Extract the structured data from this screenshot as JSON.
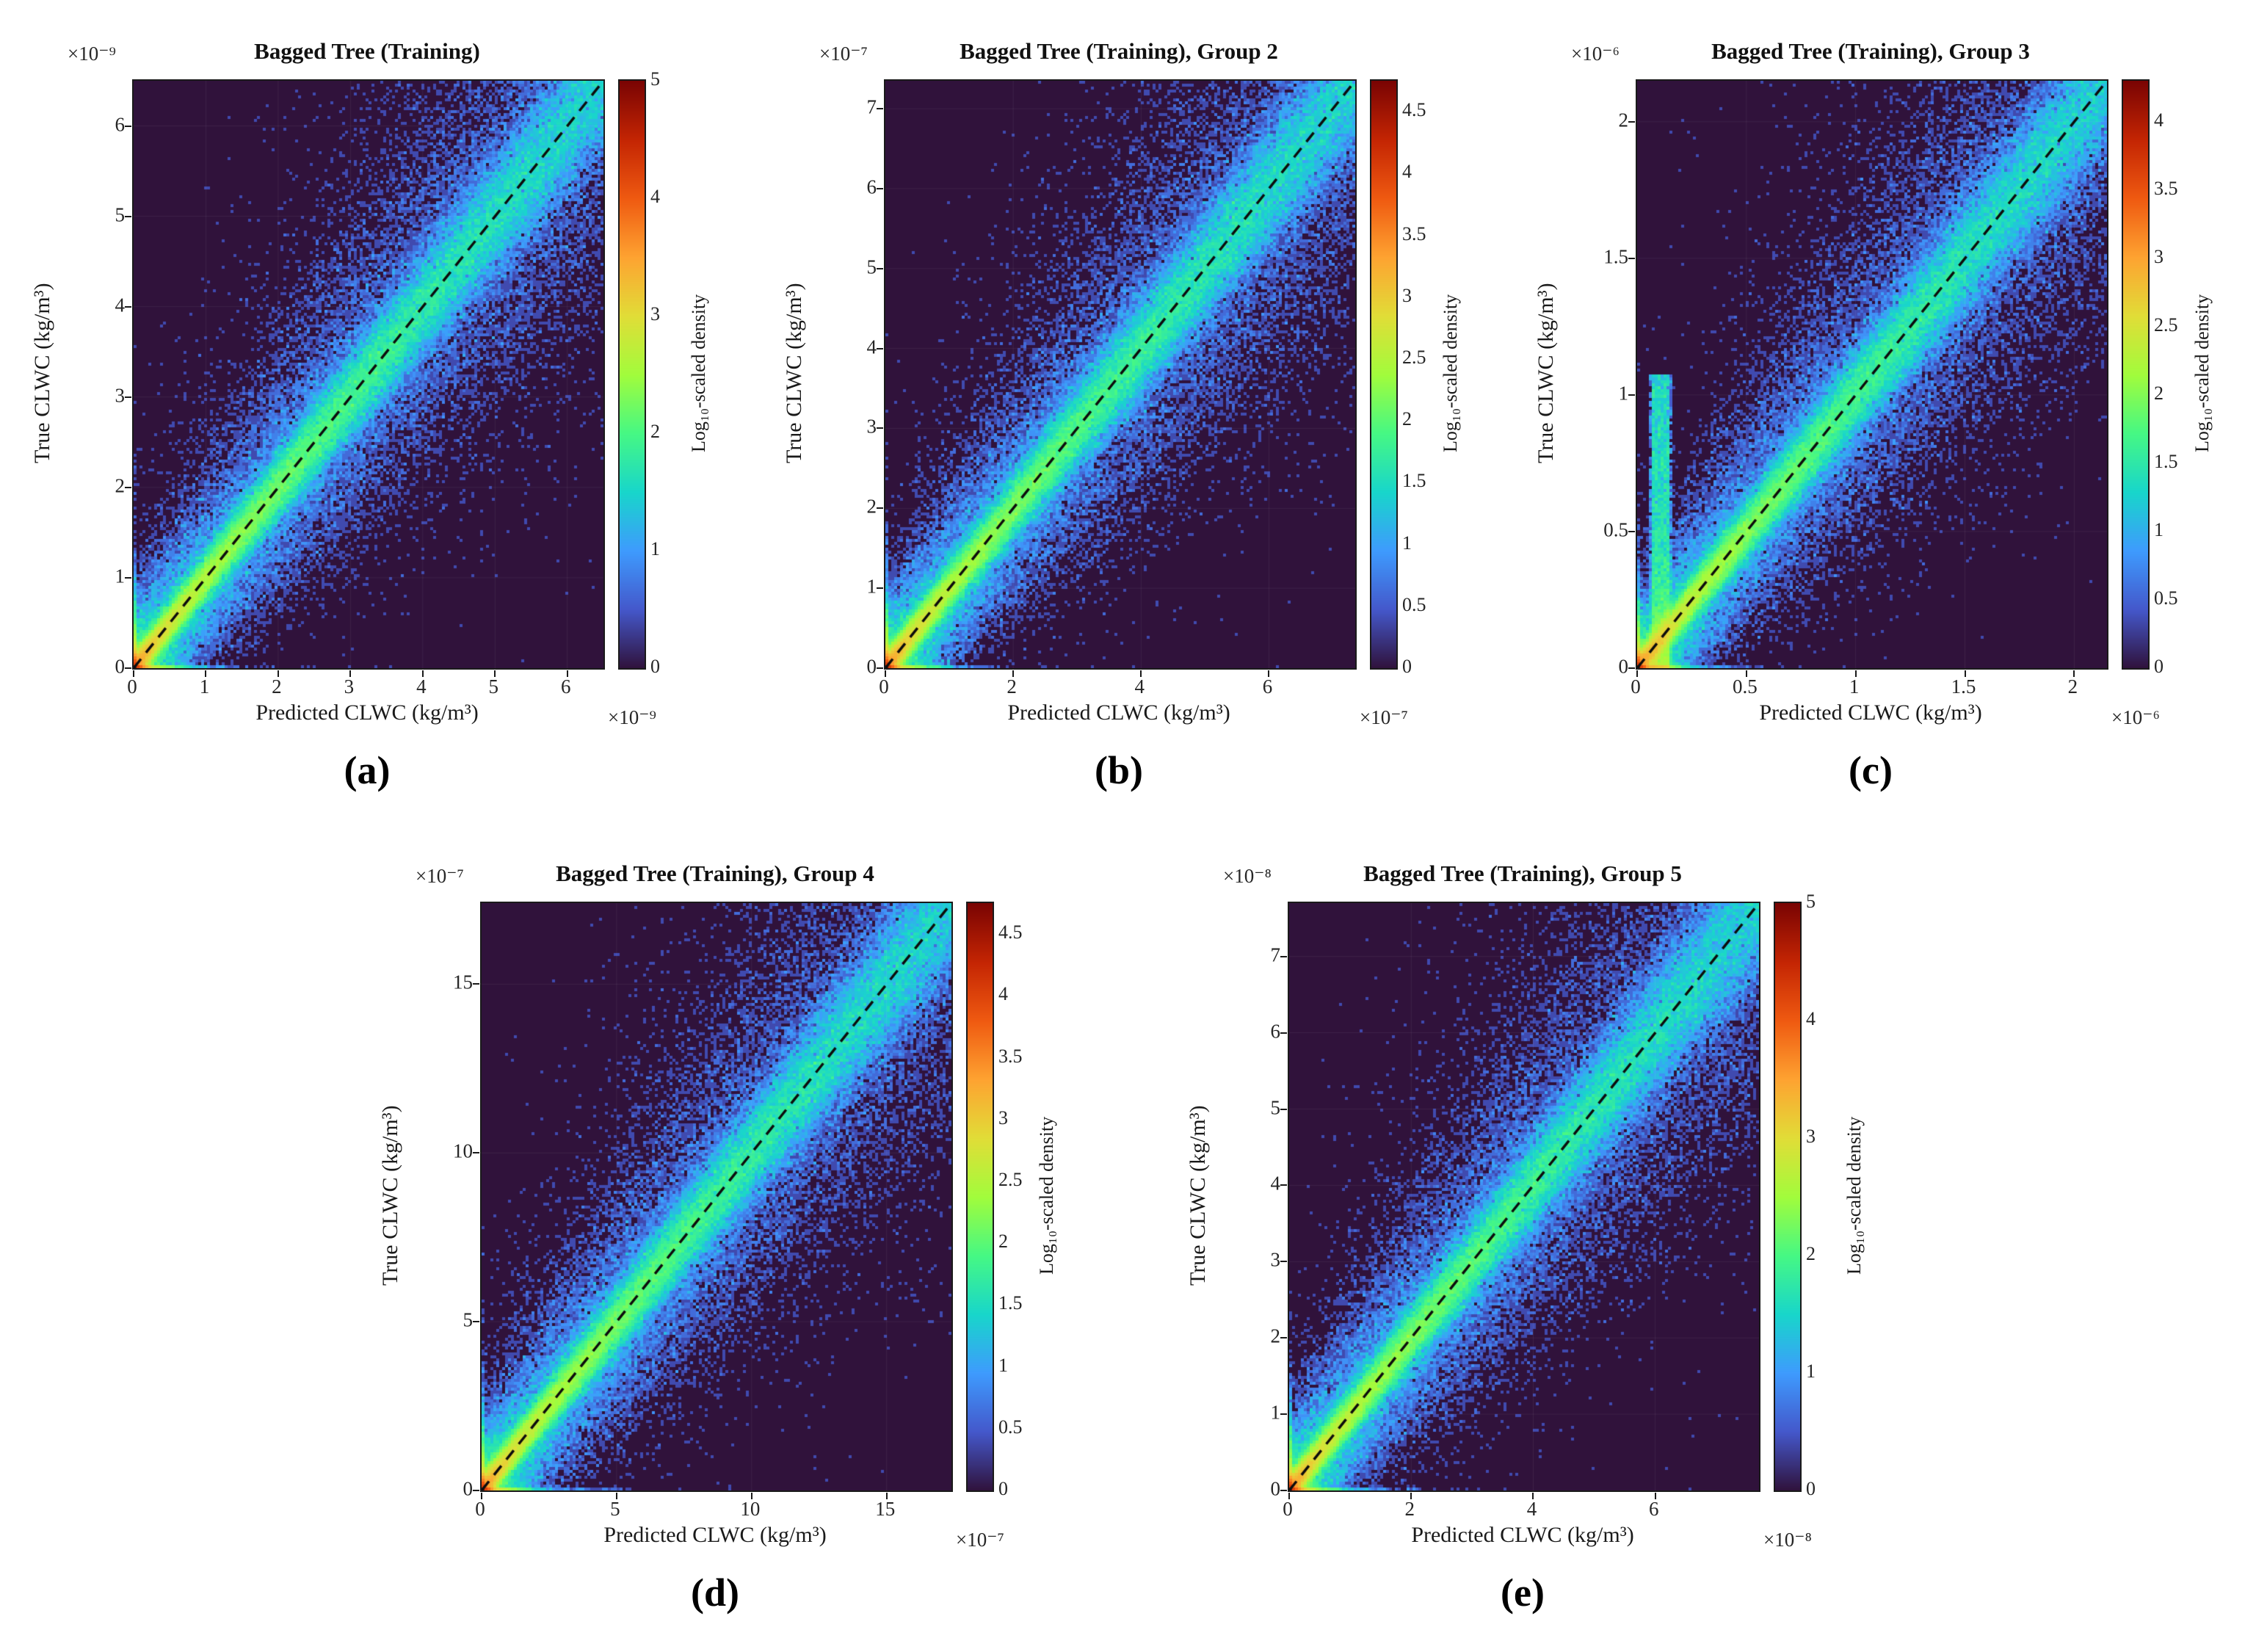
{
  "figure": {
    "background": "#ffffff",
    "colormap": "turbo",
    "colormap_stops": [
      "#30123b",
      "#4458cb",
      "#3e9bfe",
      "#18d6cb",
      "#46f884",
      "#a2fc3c",
      "#e1dd37",
      "#fea331",
      "#ef5a11",
      "#c42503",
      "#7a0403"
    ],
    "diagonal_line": "y = x (black dashed)"
  },
  "chart_data": [
    {
      "type": "heatmap",
      "panel_label": "(a)",
      "title": "Bagged Tree (Training)",
      "xlabel": "Predicted CLWC (kg/m³)",
      "ylabel": "True CLWC (kg/m³)",
      "x_exponent": "×10⁻⁹",
      "y_exponent": "×10⁻⁹",
      "colorbar_label": "Log₁₀-scaled density",
      "xticks": [
        0,
        1,
        2,
        3,
        4,
        5,
        6
      ],
      "yticks": [
        0,
        1,
        2,
        3,
        4,
        5,
        6
      ],
      "xlim": [
        0,
        6.5
      ],
      "ylim": [
        0,
        6.5
      ],
      "colorbar_ticks": [
        0,
        1,
        2,
        3,
        4,
        5
      ],
      "colorbar_lim": [
        0,
        5
      ],
      "grid": true,
      "origin_density_streak": false
    },
    {
      "type": "heatmap",
      "panel_label": "(b)",
      "title": "Bagged Tree (Training), Group 2",
      "xlabel": "Predicted CLWC (kg/m³)",
      "ylabel": "True CLWC (kg/m³)",
      "x_exponent": "×10⁻⁷",
      "y_exponent": "×10⁻⁷",
      "colorbar_label": "Log₁₀-scaled density",
      "xticks": [
        0,
        2,
        4,
        6
      ],
      "yticks": [
        0,
        1,
        2,
        3,
        4,
        5,
        6,
        7
      ],
      "xlim": [
        0,
        7.35
      ],
      "ylim": [
        0,
        7.35
      ],
      "colorbar_ticks": [
        0,
        0.5,
        1,
        1.5,
        2,
        2.5,
        3,
        3.5,
        4,
        4.5
      ],
      "colorbar_lim": [
        0,
        4.75
      ],
      "grid": true,
      "origin_density_streak": false
    },
    {
      "type": "heatmap",
      "panel_label": "(c)",
      "title": "Bagged Tree (Training), Group 3",
      "xlabel": "Predicted CLWC (kg/m³)",
      "ylabel": "True CLWC (kg/m³)",
      "x_exponent": "×10⁻⁶",
      "y_exponent": "×10⁻⁶",
      "colorbar_label": "Log₁₀-scaled density",
      "xticks": [
        0,
        0.5,
        1,
        1.5,
        2
      ],
      "yticks": [
        0,
        0.5,
        1,
        1.5,
        2
      ],
      "xlim": [
        0,
        2.15
      ],
      "ylim": [
        0,
        2.15
      ],
      "colorbar_ticks": [
        0,
        0.5,
        1,
        1.5,
        2,
        2.5,
        3,
        3.5,
        4
      ],
      "colorbar_lim": [
        0,
        4.3
      ],
      "grid": true,
      "origin_density_streak": true
    },
    {
      "type": "heatmap",
      "panel_label": "(d)",
      "title": "Bagged Tree (Training), Group 4",
      "xlabel": "Predicted CLWC (kg/m³)",
      "ylabel": "True CLWC (kg/m³)",
      "x_exponent": "×10⁻⁷",
      "y_exponent": "×10⁻⁷",
      "colorbar_label": "Log₁₀-scaled density",
      "xticks": [
        0,
        5,
        10,
        15
      ],
      "yticks": [
        0,
        5,
        10,
        15
      ],
      "xlim": [
        0,
        17.4
      ],
      "ylim": [
        0,
        17.4
      ],
      "colorbar_ticks": [
        0,
        0.5,
        1,
        1.5,
        2,
        2.5,
        3,
        3.5,
        4,
        4.5
      ],
      "colorbar_lim": [
        0,
        4.75
      ],
      "grid": true,
      "origin_density_streak": false
    },
    {
      "type": "heatmap",
      "panel_label": "(e)",
      "title": "Bagged Tree (Training), Group 5",
      "xlabel": "Predicted CLWC (kg/m³)",
      "ylabel": "True CLWC (kg/m³)",
      "x_exponent": "×10⁻⁸",
      "y_exponent": "×10⁻⁸",
      "colorbar_label": "Log₁₀-scaled density",
      "xticks": [
        0,
        2,
        4,
        6
      ],
      "yticks": [
        0,
        1,
        2,
        3,
        4,
        5,
        6,
        7
      ],
      "xlim": [
        0,
        7.7
      ],
      "ylim": [
        0,
        7.7
      ],
      "colorbar_ticks": [
        0,
        1,
        2,
        3,
        4,
        5
      ],
      "colorbar_lim": [
        0,
        5
      ],
      "grid": true,
      "origin_density_streak": false
    }
  ]
}
